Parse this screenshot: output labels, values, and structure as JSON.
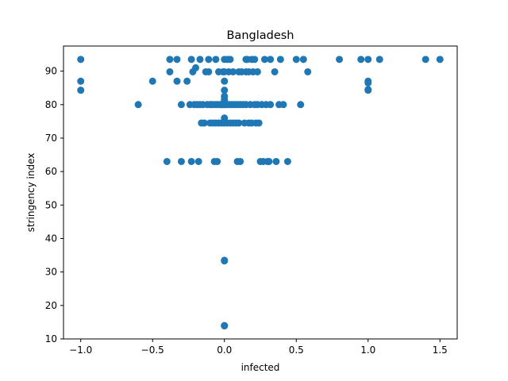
{
  "chart_data": {
    "type": "scatter",
    "title": "Bangladesh",
    "xlabel": "infected",
    "ylabel": "stringency index",
    "xlim": [
      -1.12,
      1.62
    ],
    "ylim": [
      10,
      97.5
    ],
    "xticks": [
      -1.0,
      -0.5,
      0.0,
      0.5,
      1.0,
      1.5
    ],
    "xtick_labels": [
      "−1.0",
      "−0.5",
      "0.0",
      "0.5",
      "1.0",
      "1.5"
    ],
    "yticks": [
      10,
      20,
      30,
      40,
      50,
      60,
      70,
      80,
      90
    ],
    "ytick_labels": [
      "10",
      "20",
      "30",
      "40",
      "50",
      "60",
      "70",
      "80",
      "90"
    ],
    "grid": false,
    "marker_color": "#1f77b4",
    "series": [
      {
        "points": [
          [
            -1.0,
            93.5
          ],
          [
            -1.0,
            87
          ],
          [
            -1.0,
            84.3
          ],
          [
            -0.6,
            80
          ],
          [
            -0.5,
            87
          ],
          [
            -0.4,
            63
          ],
          [
            -0.38,
            89.8
          ],
          [
            -0.38,
            93.5
          ],
          [
            -0.33,
            93.5
          ],
          [
            -0.33,
            87
          ],
          [
            -0.3,
            63
          ],
          [
            -0.3,
            80
          ],
          [
            -0.26,
            87
          ],
          [
            -0.24,
            80
          ],
          [
            -0.23,
            63
          ],
          [
            -0.23,
            93.5
          ],
          [
            -0.22,
            89.8
          ],
          [
            -0.21,
            80
          ],
          [
            -0.2,
            91
          ],
          [
            -0.19,
            80
          ],
          [
            -0.18,
            63
          ],
          [
            -0.17,
            93.5
          ],
          [
            -0.17,
            80
          ],
          [
            -0.16,
            74.5
          ],
          [
            -0.15,
            80
          ],
          [
            -0.14,
            74.5
          ],
          [
            -0.13,
            89.8
          ],
          [
            -0.12,
            80
          ],
          [
            -0.11,
            93.5
          ],
          [
            -0.11,
            89.8
          ],
          [
            -0.1,
            80
          ],
          [
            -0.1,
            74.5
          ],
          [
            -0.09,
            80
          ],
          [
            -0.08,
            74.5
          ],
          [
            -0.07,
            80
          ],
          [
            -0.07,
            63
          ],
          [
            -0.06,
            93.5
          ],
          [
            -0.06,
            74.5
          ],
          [
            -0.05,
            80
          ],
          [
            -0.05,
            63
          ],
          [
            -0.04,
            89.8
          ],
          [
            -0.04,
            74.5
          ],
          [
            -0.03,
            80
          ],
          [
            -0.02,
            80
          ],
          [
            -0.02,
            74.5
          ],
          [
            -0.01,
            80
          ],
          [
            -0.01,
            89.8
          ],
          [
            0.0,
            93.5
          ],
          [
            0.0,
            89.8
          ],
          [
            0.0,
            87
          ],
          [
            0.0,
            84.3
          ],
          [
            0.0,
            82.5
          ],
          [
            0.0,
            81.5
          ],
          [
            0.0,
            80
          ],
          [
            0.0,
            76
          ],
          [
            0.0,
            75
          ],
          [
            0.0,
            74.5
          ],
          [
            0.0,
            33.5
          ],
          [
            0.0,
            33.3
          ],
          [
            0.0,
            14
          ],
          [
            0.0,
            13.9
          ],
          [
            0.01,
            80
          ],
          [
            0.02,
            93.5
          ],
          [
            0.02,
            74.5
          ],
          [
            0.03,
            89.8
          ],
          [
            0.03,
            80
          ],
          [
            0.04,
            93.5
          ],
          [
            0.04,
            74.5
          ],
          [
            0.05,
            80
          ],
          [
            0.06,
            89.8
          ],
          [
            0.06,
            74.5
          ],
          [
            0.07,
            80
          ],
          [
            0.08,
            74.5
          ],
          [
            0.09,
            80
          ],
          [
            0.09,
            63
          ],
          [
            0.1,
            89.8
          ],
          [
            0.1,
            74.5
          ],
          [
            0.11,
            80
          ],
          [
            0.11,
            63
          ],
          [
            0.12,
            89.8
          ],
          [
            0.13,
            80
          ],
          [
            0.14,
            74.5
          ],
          [
            0.15,
            93.5
          ],
          [
            0.15,
            89.8
          ],
          [
            0.15,
            80
          ],
          [
            0.16,
            93.5
          ],
          [
            0.17,
            74.5
          ],
          [
            0.17,
            89.8
          ],
          [
            0.18,
            80
          ],
          [
            0.19,
            93.5
          ],
          [
            0.19,
            74.5
          ],
          [
            0.2,
            89.8
          ],
          [
            0.21,
            93.5
          ],
          [
            0.21,
            80
          ],
          [
            0.22,
            74.5
          ],
          [
            0.23,
            89.8
          ],
          [
            0.23,
            80
          ],
          [
            0.24,
            74.5
          ],
          [
            0.25,
            63
          ],
          [
            0.26,
            80
          ],
          [
            0.27,
            63
          ],
          [
            0.28,
            93.5
          ],
          [
            0.29,
            80
          ],
          [
            0.3,
            63
          ],
          [
            0.31,
            63
          ],
          [
            0.32,
            93.5
          ],
          [
            0.32,
            80
          ],
          [
            0.35,
            89.8
          ],
          [
            0.36,
            63
          ],
          [
            0.38,
            80
          ],
          [
            0.39,
            93.5
          ],
          [
            0.41,
            80
          ],
          [
            0.44,
            63
          ],
          [
            0.5,
            93.5
          ],
          [
            0.53,
            80
          ],
          [
            0.55,
            93.5
          ],
          [
            0.58,
            89.8
          ],
          [
            0.8,
            93.5
          ],
          [
            0.95,
            93.5
          ],
          [
            1.0,
            93.5
          ],
          [
            1.0,
            87
          ],
          [
            1.0,
            86.5
          ],
          [
            1.0,
            84.5
          ],
          [
            1.0,
            84.3
          ],
          [
            1.08,
            93.5
          ],
          [
            1.4,
            93.5
          ],
          [
            1.5,
            93.5
          ]
        ]
      }
    ]
  }
}
